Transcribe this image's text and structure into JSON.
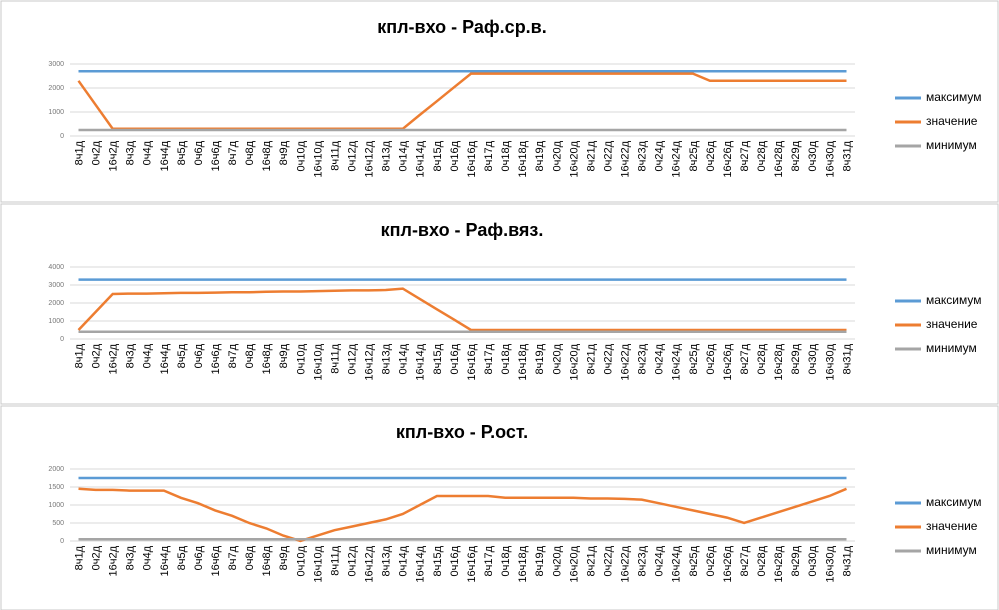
{
  "chart_data": [
    {
      "type": "line",
      "title": "кпл-вхо - Раф.ср.в.",
      "categories": [
        "8ч1д",
        "0ч2д",
        "16ч2д",
        "8ч3д",
        "0ч4д",
        "16ч4д",
        "8ч5д",
        "0ч6д",
        "16ч6д",
        "8ч7д",
        "0ч8д",
        "16ч8д",
        "8ч9д",
        "0ч10д",
        "16ч10д",
        "8ч11д",
        "0ч12д",
        "16ч12д",
        "8ч13д",
        "0ч14д",
        "16ч14д",
        "8ч15д",
        "0ч16д",
        "16ч16д",
        "8ч17д",
        "0ч18д",
        "16ч18д",
        "8ч19д",
        "0ч20д",
        "16ч20д",
        "8ч21д",
        "0ч22д",
        "16ч22д",
        "8ч23д",
        "0ч24д",
        "16ч24д",
        "8ч25д",
        "0ч26д",
        "16ч26д",
        "8ч27д",
        "0ч28д",
        "16ч28д",
        "8ч29д",
        "0ч30д",
        "16ч30д",
        "8ч31д"
      ],
      "series": [
        {
          "name": "максимум",
          "color": "#5b9bd5",
          "values": [
            2700,
            2700,
            2700,
            2700,
            2700,
            2700,
            2700,
            2700,
            2700,
            2700,
            2700,
            2700,
            2700,
            2700,
            2700,
            2700,
            2700,
            2700,
            2700,
            2700,
            2700,
            2700,
            2700,
            2700,
            2700,
            2700,
            2700,
            2700,
            2700,
            2700,
            2700,
            2700,
            2700,
            2700,
            2700,
            2700,
            2700,
            2700,
            2700,
            2700,
            2700,
            2700,
            2700,
            2700,
            2700,
            2700
          ]
        },
        {
          "name": "значение",
          "color": "#ed7d31",
          "values": [
            2300,
            1300,
            300,
            300,
            300,
            300,
            300,
            300,
            300,
            300,
            300,
            300,
            300,
            300,
            300,
            300,
            300,
            300,
            300,
            300,
            880,
            1450,
            2030,
            2600,
            2600,
            2600,
            2600,
            2600,
            2600,
            2600,
            2600,
            2600,
            2600,
            2600,
            2600,
            2600,
            2600,
            2300,
            2300,
            2300,
            2300,
            2300,
            2300,
            2300,
            2300,
            2300
          ]
        },
        {
          "name": "минимум",
          "color": "#a5a5a5",
          "values": [
            250,
            250,
            250,
            250,
            250,
            250,
            250,
            250,
            250,
            250,
            250,
            250,
            250,
            250,
            250,
            250,
            250,
            250,
            250,
            250,
            250,
            250,
            250,
            250,
            250,
            250,
            250,
            250,
            250,
            250,
            250,
            250,
            250,
            250,
            250,
            250,
            250,
            250,
            250,
            250,
            250,
            250,
            250,
            250,
            250,
            250
          ]
        }
      ],
      "ylim": [
        0,
        3000
      ],
      "yticks": [
        0,
        1000,
        2000,
        3000
      ],
      "grid": true,
      "legend": "right"
    },
    {
      "type": "line",
      "title": "кпл-вхо - Раф.вяз.",
      "categories": [
        "8ч1д",
        "0ч2д",
        "16ч2д",
        "8ч3д",
        "0ч4д",
        "16ч4д",
        "8ч5д",
        "0ч6д",
        "16ч6д",
        "8ч7д",
        "0ч8д",
        "16ч8д",
        "8ч9д",
        "0ч10д",
        "16ч10д",
        "8ч11д",
        "0ч12д",
        "16ч12д",
        "8ч13д",
        "0ч14д",
        "16ч14д",
        "8ч15д",
        "0ч16д",
        "16ч16д",
        "8ч17д",
        "0ч18д",
        "16ч18д",
        "8ч19д",
        "0ч20д",
        "16ч20д",
        "8ч21д",
        "0ч22д",
        "16ч22д",
        "8ч23д",
        "0ч24д",
        "16ч24д",
        "8ч25д",
        "0ч26д",
        "16ч26д",
        "8ч27д",
        "0ч28д",
        "16ч28д",
        "8ч29д",
        "0ч30д",
        "16ч30д",
        "8ч31д"
      ],
      "series": [
        {
          "name": "максимум",
          "color": "#5b9bd5",
          "values": [
            3300,
            3300,
            3300,
            3300,
            3300,
            3300,
            3300,
            3300,
            3300,
            3300,
            3300,
            3300,
            3300,
            3300,
            3300,
            3300,
            3300,
            3300,
            3300,
            3300,
            3300,
            3300,
            3300,
            3300,
            3300,
            3300,
            3300,
            3300,
            3300,
            3300,
            3300,
            3300,
            3300,
            3300,
            3300,
            3300,
            3300,
            3300,
            3300,
            3300,
            3300,
            3300,
            3300,
            3300,
            3300,
            3300
          ]
        },
        {
          "name": "значение",
          "color": "#ed7d31",
          "values": [
            500,
            1500,
            2500,
            2520,
            2520,
            2540,
            2560,
            2560,
            2580,
            2600,
            2600,
            2620,
            2640,
            2640,
            2660,
            2680,
            2700,
            2700,
            2720,
            2800,
            2230,
            1650,
            1080,
            500,
            500,
            500,
            500,
            500,
            500,
            500,
            500,
            500,
            500,
            500,
            500,
            500,
            500,
            500,
            500,
            500,
            500,
            500,
            500,
            500,
            500,
            500
          ]
        },
        {
          "name": "минимум",
          "color": "#a5a5a5",
          "values": [
            400,
            400,
            400,
            400,
            400,
            400,
            400,
            400,
            400,
            400,
            400,
            400,
            400,
            400,
            400,
            400,
            400,
            400,
            400,
            400,
            400,
            400,
            400,
            400,
            400,
            400,
            400,
            400,
            400,
            400,
            400,
            400,
            400,
            400,
            400,
            400,
            400,
            400,
            400,
            400,
            400,
            400,
            400,
            400,
            400,
            400
          ]
        }
      ],
      "ylim": [
        0,
        4000
      ],
      "yticks": [
        0,
        1000,
        2000,
        3000,
        4000
      ],
      "grid": true,
      "legend": "right"
    },
    {
      "type": "line",
      "title": "кпл-вхо - Р.ост.",
      "categories": [
        "8ч1д",
        "0ч2д",
        "16ч2д",
        "8ч3д",
        "0ч4д",
        "16ч4д",
        "8ч5д",
        "0ч6д",
        "16ч6д",
        "8ч7д",
        "0ч8д",
        "16ч8д",
        "8ч9д",
        "0ч10д",
        "16ч10д",
        "8ч11д",
        "0ч12д",
        "16ч12д",
        "8ч13д",
        "0ч14д",
        "16ч14д",
        "8ч15д",
        "0ч16д",
        "16ч16д",
        "8ч17д",
        "0ч18д",
        "16ч18д",
        "8ч19д",
        "0ч20д",
        "16ч20д",
        "8ч21д",
        "0ч22д",
        "16ч22д",
        "8ч23д",
        "0ч24д",
        "16ч24д",
        "8ч25д",
        "0ч26д",
        "16ч26д",
        "8ч27д",
        "0ч28д",
        "16ч28д",
        "8ч29д",
        "0ч30д",
        "16ч30д",
        "8ч31д"
      ],
      "series": [
        {
          "name": "максимум",
          "color": "#5b9bd5",
          "values": [
            1750,
            1750,
            1750,
            1750,
            1750,
            1750,
            1750,
            1750,
            1750,
            1750,
            1750,
            1750,
            1750,
            1750,
            1750,
            1750,
            1750,
            1750,
            1750,
            1750,
            1750,
            1750,
            1750,
            1750,
            1750,
            1750,
            1750,
            1750,
            1750,
            1750,
            1750,
            1750,
            1750,
            1750,
            1750,
            1750,
            1750,
            1750,
            1750,
            1750,
            1750,
            1750,
            1750,
            1750,
            1750,
            1750
          ]
        },
        {
          "name": "значение",
          "color": "#ed7d31",
          "values": [
            1450,
            1420,
            1420,
            1400,
            1400,
            1400,
            1200,
            1050,
            850,
            700,
            500,
            350,
            150,
            0,
            150,
            300,
            400,
            500,
            600,
            750,
            1000,
            1250,
            1250,
            1250,
            1250,
            1200,
            1200,
            1200,
            1200,
            1200,
            1180,
            1180,
            1170,
            1150,
            1050,
            950,
            850,
            750,
            650,
            500,
            650,
            800,
            950,
            1100,
            1250,
            1450
          ]
        },
        {
          "name": "минимум",
          "color": "#a5a5a5",
          "values": [
            50,
            50,
            50,
            50,
            50,
            50,
            50,
            50,
            50,
            50,
            50,
            50,
            50,
            50,
            50,
            50,
            50,
            50,
            50,
            50,
            50,
            50,
            50,
            50,
            50,
            50,
            50,
            50,
            50,
            50,
            50,
            50,
            50,
            50,
            50,
            50,
            50,
            50,
            50,
            50,
            50,
            50,
            50,
            50,
            50,
            50
          ]
        }
      ],
      "ylim": [
        0,
        2000
      ],
      "yticks": [
        0,
        500,
        1000,
        1500,
        2000
      ],
      "grid": true,
      "legend": "right"
    }
  ]
}
